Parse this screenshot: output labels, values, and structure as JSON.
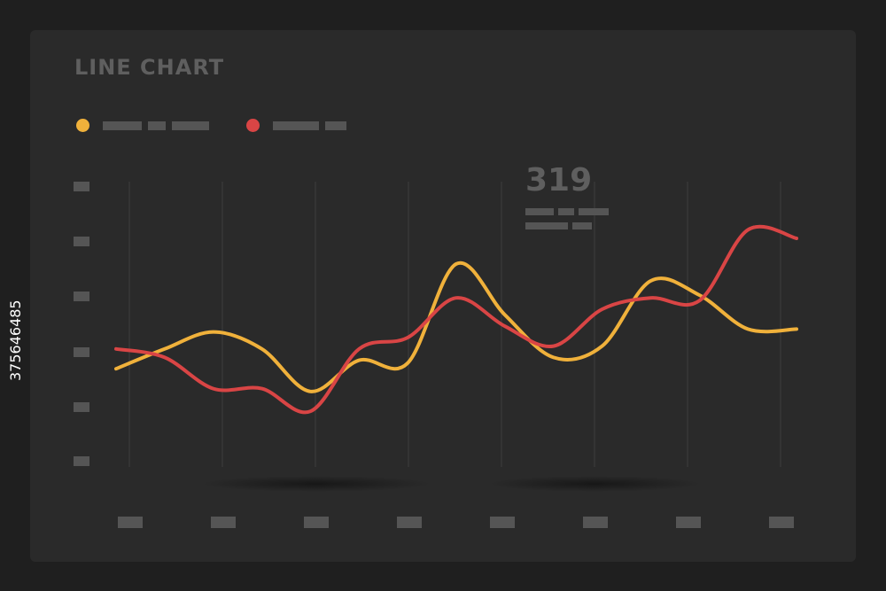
{
  "title": "LINE CHART",
  "annotation": {
    "value": "319"
  },
  "watermark": "375646485",
  "colors": {
    "background": "#1f1f1f",
    "card": "#2a2a2a",
    "series_1": "#f0b13b",
    "series_2": "#d94545",
    "gridline": "#3f3f3f",
    "placeholder": "#555555"
  },
  "chart_data": {
    "type": "line",
    "title": "LINE CHART",
    "xlabel": "",
    "ylabel": "",
    "x": [
      0,
      1,
      2,
      3,
      4,
      5,
      6,
      7,
      8,
      9,
      10,
      11,
      12,
      13,
      14
    ],
    "ylim": [
      0,
      100
    ],
    "grid": "vertical",
    "legend": "top-left",
    "series": [
      {
        "color": "#f0b13b",
        "values": [
          34,
          41,
          47,
          41,
          26,
          37,
          36,
          71,
          53,
          38,
          42,
          65,
          60,
          48,
          48
        ]
      },
      {
        "color": "#d94545",
        "values": [
          41,
          38,
          27,
          27,
          19,
          41,
          45,
          59,
          49,
          42,
          55,
          59,
          58,
          83,
          80
        ]
      }
    ],
    "annotations": [
      {
        "text": "319"
      }
    ]
  }
}
